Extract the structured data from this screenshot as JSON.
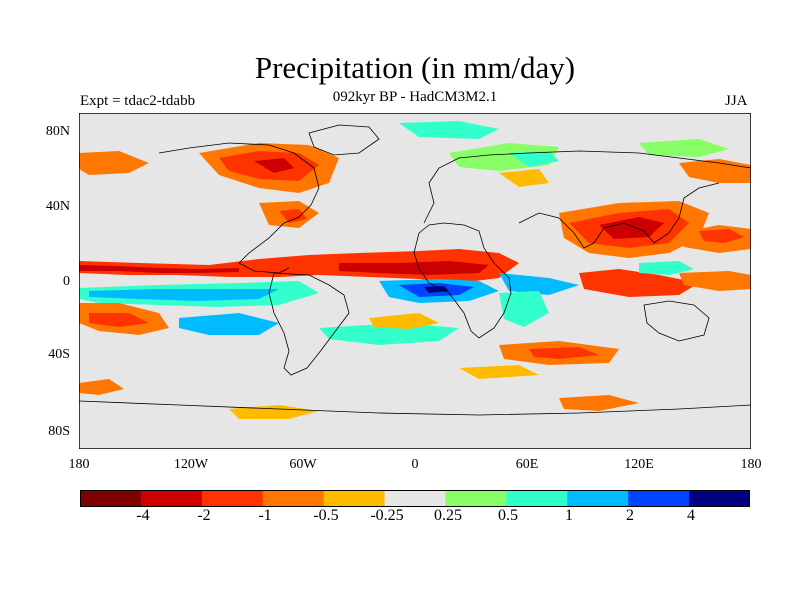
{
  "title": "Precipitation (in mm/day)",
  "subtitle": "092kyr BP - HadCM3M2.1",
  "left_label": "Expt = tdac2-tdabb",
  "right_label": "JJA",
  "y_axis": {
    "ticks": [
      "80N",
      "40N",
      "0",
      "40S",
      "80S"
    ]
  },
  "x_axis": {
    "ticks": [
      "180",
      "120W",
      "60W",
      "0",
      "60E",
      "120E",
      "180"
    ]
  },
  "colorbar": {
    "colors": [
      "#7f0000",
      "#cc0000",
      "#ff3300",
      "#ff7700",
      "#ffbb00",
      "#e6e6e6",
      "#88ff66",
      "#33ffcc",
      "#00bbff",
      "#0044ff",
      "#000080"
    ],
    "labels": [
      "-4",
      "-2",
      "-1",
      "-0.5",
      "-0.25",
      "0.25",
      "0.5",
      "1",
      "2",
      "4"
    ]
  }
}
